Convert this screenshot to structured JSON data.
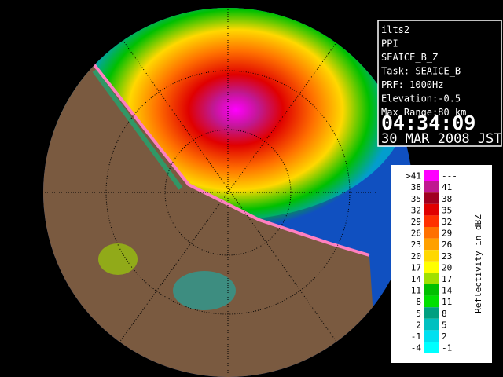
{
  "info": {
    "lines": [
      "ilts2",
      "PPI",
      "SEAICE_B_Z",
      "Task: SEAICE_B",
      "PRF: 1000Hz",
      "Elevation:-0.5",
      "Max Range:80 km"
    ],
    "time": "04:34:09",
    "date": "30 MAR 2008 JST"
  },
  "legend": {
    "title": "Reflectivity in dBZ",
    "rows": [
      {
        "low": ">41",
        "high": "---",
        "color": "#ff00ff"
      },
      {
        "low": "38",
        "high": "41",
        "color": "#c01890"
      },
      {
        "low": "35",
        "high": "38",
        "color": "#a00020"
      },
      {
        "low": "32",
        "high": "35",
        "color": "#e00000"
      },
      {
        "low": "29",
        "high": "32",
        "color": "#ff3000"
      },
      {
        "low": "26",
        "high": "29",
        "color": "#ff7000"
      },
      {
        "low": "23",
        "high": "26",
        "color": "#ffa000"
      },
      {
        "low": "20",
        "high": "23",
        "color": "#ffd800"
      },
      {
        "low": "17",
        "high": "20",
        "color": "#ffff00"
      },
      {
        "low": "14",
        "high": "17",
        "color": "#a0e000"
      },
      {
        "low": "11",
        "high": "14",
        "color": "#00c000"
      },
      {
        "low": "8",
        "high": "11",
        "color": "#00e000"
      },
      {
        "low": "5",
        "high": "8",
        "color": "#00a080"
      },
      {
        "low": "2",
        "high": "5",
        "color": "#00c0c0"
      },
      {
        "low": "-1",
        "high": "2",
        "color": "#00e0f0"
      },
      {
        "low": "-4",
        "high": "-1",
        "color": "#00ffff"
      }
    ]
  }
}
